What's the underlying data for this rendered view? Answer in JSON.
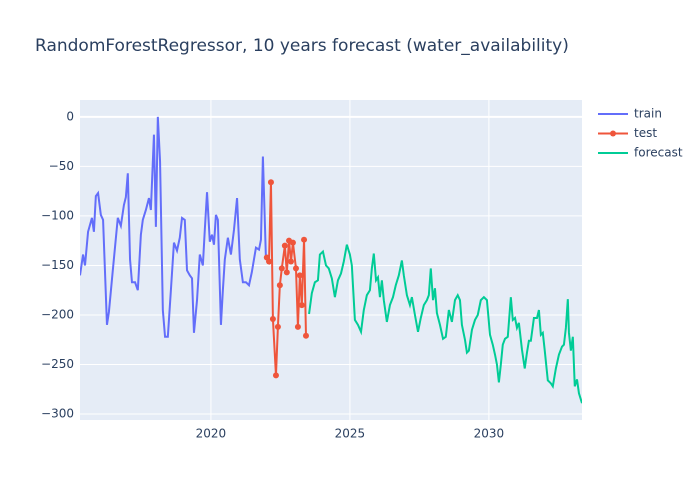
{
  "chart_data": {
    "type": "line",
    "title": "RandomForestRegressor, 10 years forecast (water_availability)",
    "xlim": [
      2015.29,
      2033.35
    ],
    "xticks": [
      2020,
      2025,
      2030
    ],
    "ylim": [
      -306,
      17
    ],
    "yticks": [
      {
        "value": 0,
        "label": "0"
      },
      {
        "value": -50,
        "label": "−50"
      },
      {
        "value": -100,
        "label": "−100"
      },
      {
        "value": -150,
        "label": "−150"
      },
      {
        "value": -200,
        "label": "−200"
      },
      {
        "value": -250,
        "label": "−250"
      },
      {
        "value": -300,
        "label": "−300"
      }
    ],
    "grid": true,
    "legend": "top-right",
    "series": [
      {
        "name": "train",
        "color": "#636efa",
        "mode": "lines",
        "x": [
          2015.29,
          2015.4,
          2015.47,
          2015.58,
          2015.72,
          2015.79,
          2015.86,
          2015.94,
          2016.04,
          2016.12,
          2016.26,
          2016.33,
          2016.47,
          2016.65,
          2016.76,
          2016.87,
          2016.94,
          2017.01,
          2017.09,
          2017.16,
          2017.27,
          2017.37,
          2017.48,
          2017.55,
          2017.66,
          2017.77,
          2017.84,
          2017.95,
          2018.02,
          2018.09,
          2018.17,
          2018.27,
          2018.35,
          2018.45,
          2018.56,
          2018.67,
          2018.78,
          2018.88,
          2018.96,
          2019.06,
          2019.14,
          2019.24,
          2019.32,
          2019.39,
          2019.5,
          2019.6,
          2019.71,
          2019.78,
          2019.86,
          2019.96,
          2020.04,
          2020.11,
          2020.18,
          2020.25,
          2020.36,
          2020.43,
          2020.5,
          2020.61,
          2020.72,
          2020.83,
          2020.94,
          2021.04,
          2021.15,
          2021.26,
          2021.37,
          2021.47,
          2021.62,
          2021.73,
          2021.8,
          2021.87,
          2021.98
        ],
        "values": [
          -160,
          -139,
          -150,
          -116,
          -102,
          -116,
          -80,
          -77,
          -99,
          -104,
          -210,
          -197,
          -155,
          -102,
          -110,
          -89,
          -81,
          -57,
          -144,
          -167,
          -167,
          -175,
          -119,
          -104,
          -94,
          -82,
          -94,
          -18,
          -111,
          0,
          -45,
          -195,
          -222,
          -222,
          -175,
          -127,
          -135,
          -122,
          -102,
          -104,
          -155,
          -160,
          -163,
          -218,
          -185,
          -139,
          -150,
          -114,
          -76,
          -126,
          -119,
          -129,
          -99,
          -104,
          -210,
          -175,
          -144,
          -122,
          -139,
          -114,
          -82,
          -144,
          -167,
          -167,
          -170,
          -157,
          -132,
          -134,
          -124,
          -40,
          -144
        ]
      },
      {
        "name": "test",
        "color": "#EF553B",
        "mode": "lines+markers",
        "x": [
          2022.01,
          2022.09,
          2022.16,
          2022.23,
          2022.34,
          2022.41,
          2022.48,
          2022.55,
          2022.66,
          2022.73,
          2022.81,
          2022.88,
          2022.95,
          2023.06,
          2023.13,
          2023.2,
          2023.27,
          2023.35,
          2023.42
        ],
        "values": [
          -142,
          -146,
          -66,
          -204,
          -261,
          -212,
          -170,
          -153,
          -130,
          -157,
          -125,
          -146,
          -127,
          -153,
          -212,
          -160,
          -190,
          -124,
          -221
        ]
      },
      {
        "name": "forecast",
        "color": "#00cc96",
        "mode": "lines",
        "x": [
          2023.53,
          2023.63,
          2023.74,
          2023.85,
          2023.92,
          2024.03,
          2024.14,
          2024.24,
          2024.35,
          2024.46,
          2024.57,
          2024.68,
          2024.78,
          2024.89,
          2025.0,
          2025.07,
          2025.18,
          2025.29,
          2025.4,
          2025.5,
          2025.61,
          2025.72,
          2025.79,
          2025.86,
          2025.94,
          2026.01,
          2026.08,
          2026.15,
          2026.22,
          2026.33,
          2026.44,
          2026.55,
          2026.65,
          2026.76,
          2026.87,
          2026.94,
          2027.05,
          2027.16,
          2027.23,
          2027.34,
          2027.45,
          2027.55,
          2027.66,
          2027.77,
          2027.84,
          2027.91,
          2027.99,
          2028.06,
          2028.13,
          2028.24,
          2028.35,
          2028.45,
          2028.56,
          2028.67,
          2028.78,
          2028.88,
          2028.96,
          2029.03,
          2029.14,
          2029.21,
          2029.28,
          2029.39,
          2029.5,
          2029.6,
          2029.71,
          2029.82,
          2029.93,
          2030.04,
          2030.14,
          2030.22,
          2030.29,
          2030.36,
          2030.43,
          2030.5,
          2030.58,
          2030.68,
          2030.79,
          2030.86,
          2030.94,
          2031.01,
          2031.08,
          2031.19,
          2031.29,
          2031.37,
          2031.44,
          2031.51,
          2031.62,
          2031.73,
          2031.8,
          2031.87,
          2031.94,
          2032.01,
          2032.12,
          2032.23,
          2032.3,
          2032.41,
          2032.52,
          2032.63,
          2032.7,
          2032.77,
          2032.84,
          2032.88,
          2032.95,
          2033.02,
          2033.09,
          2033.17,
          2033.24,
          2033.35
        ],
        "values": [
          -199,
          -178,
          -167,
          -165,
          -139,
          -136,
          -150,
          -153,
          -163,
          -182,
          -165,
          -158,
          -146,
          -129,
          -139,
          -150,
          -205,
          -210,
          -217,
          -195,
          -180,
          -175,
          -153,
          -138,
          -165,
          -162,
          -182,
          -165,
          -185,
          -207,
          -190,
          -182,
          -170,
          -160,
          -145,
          -160,
          -180,
          -190,
          -182,
          -200,
          -217,
          -203,
          -190,
          -185,
          -180,
          -153,
          -185,
          -173,
          -198,
          -210,
          -224,
          -222,
          -195,
          -207,
          -185,
          -180,
          -185,
          -210,
          -225,
          -238,
          -236,
          -215,
          -205,
          -200,
          -185,
          -182,
          -185,
          -220,
          -230,
          -240,
          -250,
          -268,
          -250,
          -230,
          -224,
          -222,
          -182,
          -205,
          -203,
          -213,
          -208,
          -235,
          -254,
          -238,
          -226,
          -226,
          -203,
          -203,
          -195,
          -220,
          -218,
          -236,
          -266,
          -269,
          -272,
          -254,
          -240,
          -232,
          -230,
          -213,
          -184,
          -218,
          -236,
          -222,
          -272,
          -265,
          -279,
          -289
        ]
      }
    ]
  }
}
